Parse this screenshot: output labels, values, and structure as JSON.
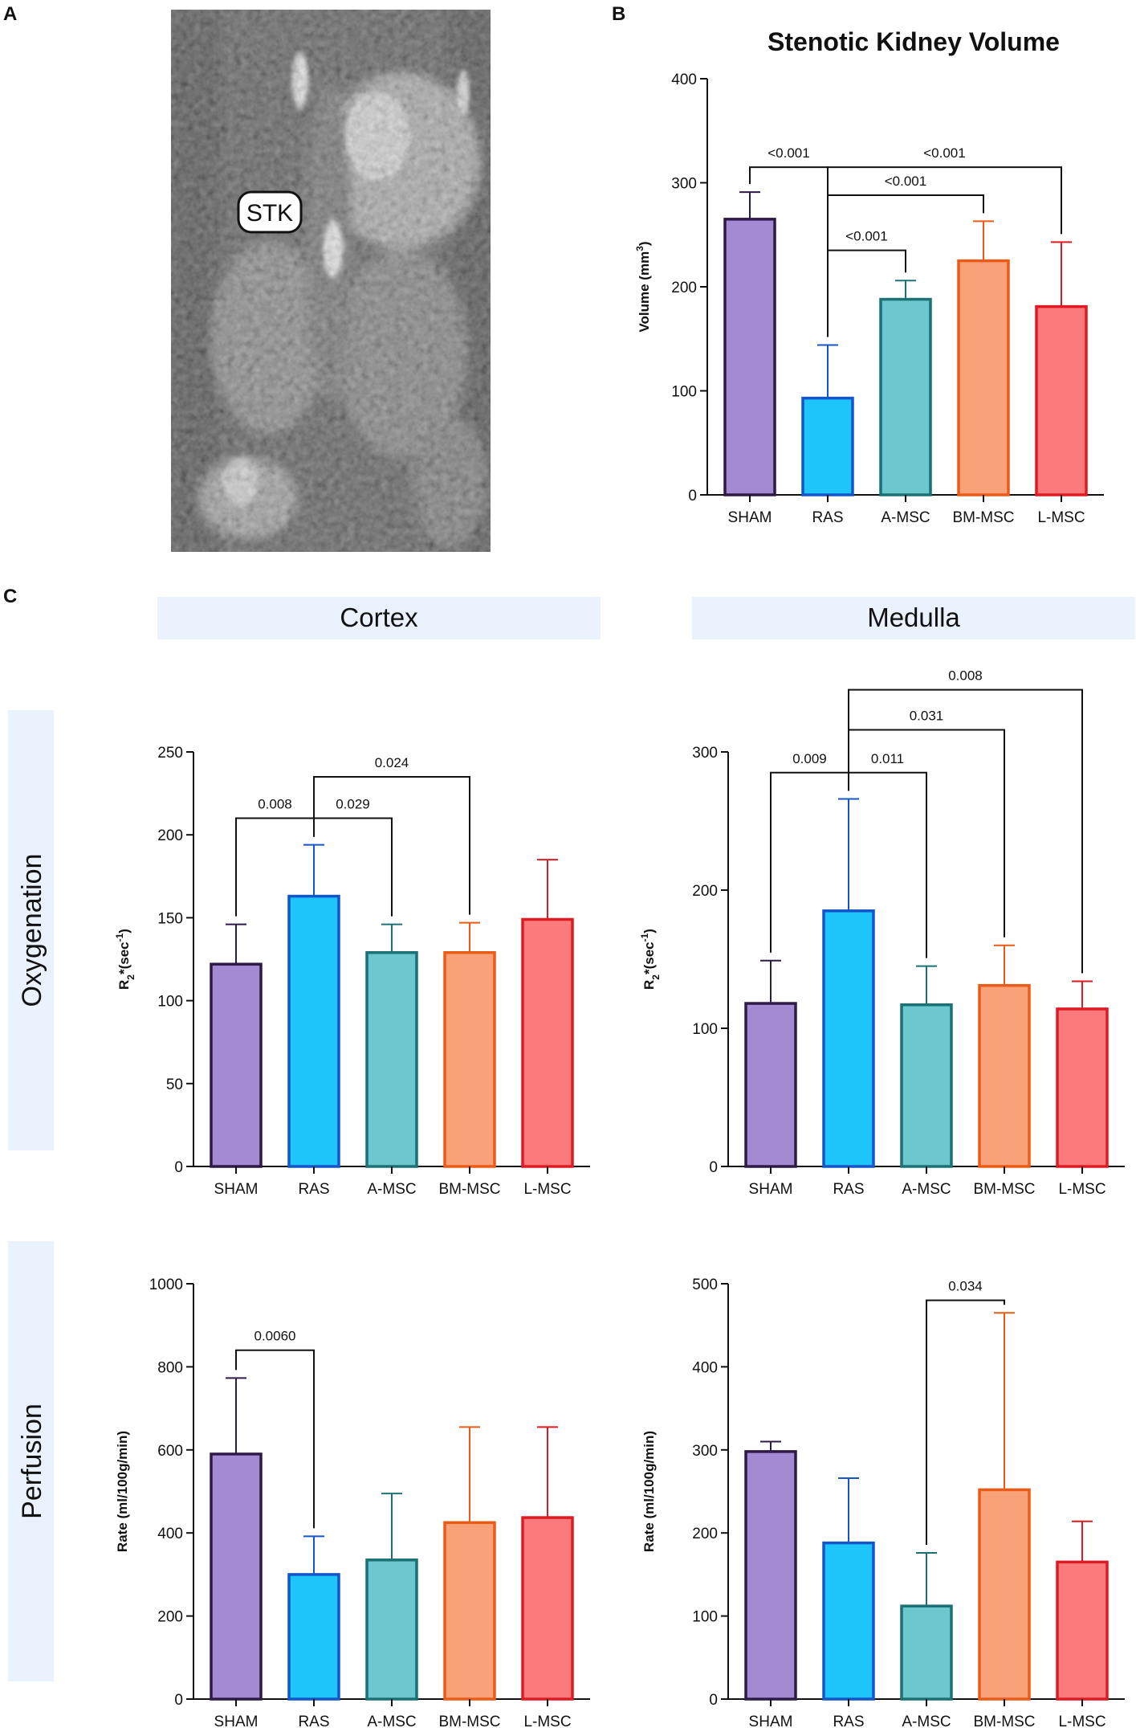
{
  "panels": {
    "a": "A",
    "b": "B",
    "c": "C"
  },
  "mri": {
    "label": "STK"
  },
  "section_headers": {
    "cortex": "Cortex",
    "medulla": "Medulla"
  },
  "row_labels": {
    "oxygenation": "Oxygenation",
    "perfusion": "Perfusion"
  },
  "colors": {
    "sham_fill": "#a48ad2",
    "sham_stroke": "#2e1a47",
    "ras_fill": "#1ec5fb",
    "ras_stroke": "#1455c8",
    "amsc_fill": "#6cc7cf",
    "amsc_stroke": "#1b7173",
    "bmmsc_fill": "#f9a27a",
    "bmmsc_stroke": "#ea5b17",
    "lmsc_fill": "#fb7b7d",
    "lmsc_stroke": "#e01a22",
    "header_bg": "#e9f2fd"
  },
  "chart_data": [
    {
      "id": "volume",
      "type": "bar",
      "title": "Stenotic Kidney Volume",
      "ylabel": "Volume (mm³)",
      "ylabel_base": "Volume (mm",
      "ylabel_sup": "3",
      "ylabel_tail": ")",
      "categories": [
        "SHAM",
        "RAS",
        "A-MSC",
        "BM-MSC",
        "L-MSC"
      ],
      "values": [
        265,
        93,
        188,
        225,
        181
      ],
      "errors": [
        26,
        51,
        18,
        38,
        62
      ],
      "ylim": [
        0,
        400
      ],
      "yticks": [
        0,
        100,
        200,
        300,
        400
      ],
      "brackets": [
        {
          "from": 0,
          "to": 1,
          "label": "<0.001",
          "level": 315
        },
        {
          "from": 1,
          "to": 4,
          "label": "<0.001",
          "level": 315
        },
        {
          "from": 1,
          "to": 3,
          "label": "<0.001",
          "level": 288
        },
        {
          "from": 1,
          "to": 2,
          "label": "<0.001",
          "level": 235
        }
      ]
    },
    {
      "id": "cortex_oxy",
      "type": "bar",
      "title": "",
      "ylabel": "R2*(sec-1)",
      "ylabel_base": "R",
      "ylabel_sub": "2",
      "ylabel_mid": "*(sec",
      "ylabel_sup": "-1",
      "ylabel_tail": ")",
      "categories": [
        "SHAM",
        "RAS",
        "A-MSC",
        "BM-MSC",
        "L-MSC"
      ],
      "values": [
        122,
        163,
        129,
        129,
        149
      ],
      "errors": [
        24,
        31,
        17,
        18,
        36
      ],
      "ylim": [
        0,
        250
      ],
      "yticks": [
        0,
        50,
        100,
        150,
        200,
        250
      ],
      "brackets": [
        {
          "from": 0,
          "to": 1,
          "label": "0.008",
          "level": 210
        },
        {
          "from": 1,
          "to": 2,
          "label": "0.029",
          "level": 210
        },
        {
          "from": 1,
          "to": 3,
          "label": "0.024",
          "level": 235
        }
      ]
    },
    {
      "id": "medulla_oxy",
      "type": "bar",
      "title": "",
      "ylabel": "R2*(sec-1)",
      "ylabel_base": "R",
      "ylabel_sub": "2",
      "ylabel_mid": "*(sec",
      "ylabel_sup": "-1",
      "ylabel_tail": ")",
      "categories": [
        "SHAM",
        "RAS",
        "A-MSC",
        "BM-MSC",
        "L-MSC"
      ],
      "values": [
        118,
        185,
        117,
        131,
        114
      ],
      "errors": [
        31,
        81,
        28,
        29,
        20
      ],
      "ylim": [
        0,
        300
      ],
      "yticks": [
        0,
        100,
        200,
        300
      ],
      "brackets": [
        {
          "from": 0,
          "to": 1,
          "label": "0.009",
          "level": 285
        },
        {
          "from": 1,
          "to": 2,
          "label": "0.011",
          "level": 285
        },
        {
          "from": 1,
          "to": 3,
          "label": "0.031",
          "level": 316
        },
        {
          "from": 1,
          "to": 4,
          "label": "0.008",
          "level": 345
        }
      ]
    },
    {
      "id": "cortex_perf",
      "type": "bar",
      "title": "",
      "ylabel": "Rate (ml/100g/min)",
      "categories": [
        "SHAM",
        "RAS",
        "A-MSC",
        "BM-MSC",
        "L-MSC"
      ],
      "values": [
        590,
        300,
        335,
        425,
        437
      ],
      "errors": [
        183,
        92,
        160,
        230,
        218
      ],
      "ylim": [
        0,
        1000
      ],
      "yticks": [
        0,
        200,
        400,
        600,
        800,
        1000
      ],
      "brackets": [
        {
          "from": 0,
          "to": 1,
          "label": "0.0060",
          "level": 840
        }
      ]
    },
    {
      "id": "medulla_perf",
      "type": "bar",
      "title": "",
      "ylabel": "Rate (ml/100g/min)",
      "categories": [
        "SHAM",
        "RAS",
        "A-MSC",
        "BM-MSC",
        "L-MSC"
      ],
      "values": [
        298,
        188,
        112,
        252,
        165
      ],
      "errors": [
        12,
        78,
        64,
        213,
        49
      ],
      "ylim": [
        0,
        500
      ],
      "yticks": [
        0,
        100,
        200,
        300,
        400,
        500
      ],
      "brackets": [
        {
          "from": 2,
          "to": 3,
          "label": "0.034",
          "level": 480
        }
      ]
    }
  ]
}
